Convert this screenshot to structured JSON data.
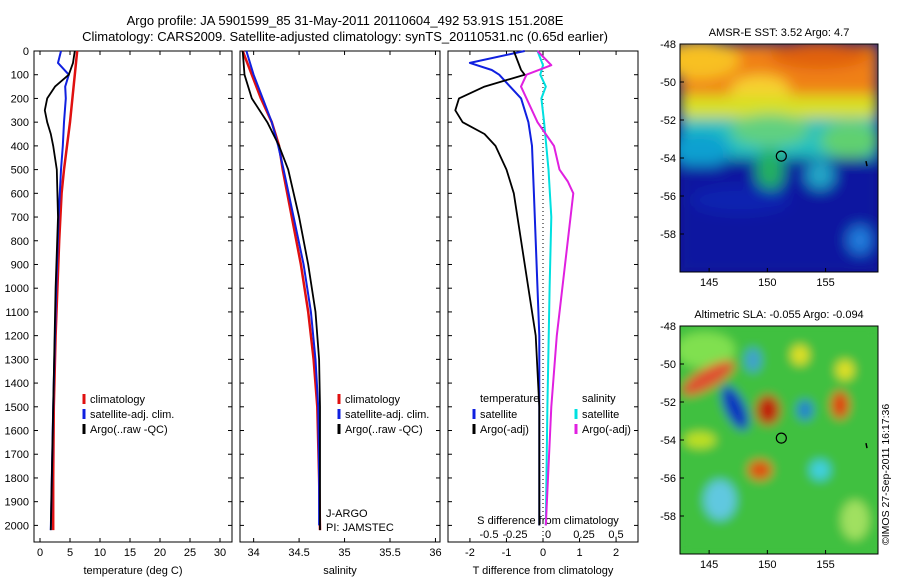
{
  "header": {
    "line1": "Argo profile: JA 5901599_85 31-May-2011 20110604_492 53.91S 151.208E",
    "line2": "Climatology: CARS2009. Satellite-adjusted climatology: synTS_20110531.nc (0.65d earlier)"
  },
  "credit": "©IMOS 27-Sep-2011 16:17:36",
  "colors": {
    "climatology": "#e01010",
    "satellite": "#1020e0",
    "argo": "#000000",
    "satellite_s": "#00e0e0",
    "argo_s": "#e020e0"
  },
  "chart_data": [
    {
      "type": "line",
      "name": "temperature-profile",
      "xlabel": "temperature (deg C)",
      "ylabel": "",
      "xlim": [
        -1,
        32
      ],
      "ylim": [
        2070,
        0
      ],
      "xticks": [
        0,
        5,
        10,
        15,
        20,
        25,
        30
      ],
      "yticks": [
        0,
        100,
        200,
        300,
        400,
        500,
        600,
        700,
        800,
        900,
        1000,
        1100,
        1200,
        1300,
        1400,
        1500,
        1600,
        1700,
        1800,
        1900,
        2000
      ],
      "legend": [
        "climatology",
        "satellite-adj. clim.",
        "Argo(..raw -QC)"
      ],
      "series": [
        {
          "name": "climatology",
          "depth": [
            0,
            100,
            200,
            300,
            400,
            500,
            600,
            800,
            1000,
            1200,
            1500,
            1800,
            2020
          ],
          "values": [
            6.2,
            5.8,
            5.4,
            5.0,
            4.5,
            4.0,
            3.6,
            3.2,
            2.9,
            2.6,
            2.3,
            2.2,
            2.2
          ]
        },
        {
          "name": "satellite-adj. clim.",
          "depth": [
            0,
            50,
            100,
            150,
            200,
            300,
            400,
            500,
            700,
            1000,
            1500,
            2020
          ],
          "values": [
            3.5,
            3.0,
            4.8,
            4.2,
            4.3,
            4.0,
            3.8,
            3.5,
            3.1,
            2.7,
            2.2,
            1.8
          ]
        },
        {
          "name": "Argo(..raw -QC)",
          "depth": [
            0,
            50,
            100,
            150,
            200,
            250,
            300,
            350,
            400,
            500,
            700,
            1000,
            1500,
            2020
          ],
          "values": [
            5.8,
            5.5,
            4.8,
            2.5,
            1.2,
            0.8,
            1.2,
            1.8,
            2.2,
            2.8,
            3.0,
            2.6,
            2.2,
            1.8
          ]
        }
      ]
    },
    {
      "type": "line",
      "name": "salinity-profile",
      "xlabel": "salinity",
      "ylabel": "",
      "xlim": [
        33.85,
        36.05
      ],
      "ylim": [
        2070,
        0
      ],
      "xticks": [
        34,
        34.5,
        35,
        35.5,
        36
      ],
      "legend": [
        "climatology",
        "satellite-adj. clim.",
        "Argo(..raw -QC)"
      ],
      "annotations": [
        "J-ARGO",
        "PI: JAMSTEC"
      ],
      "series": [
        {
          "name": "climatology",
          "depth": [
            0,
            100,
            200,
            300,
            400,
            500,
            700,
            900,
            1100,
            1300,
            1500,
            1800,
            2020
          ],
          "values": [
            33.88,
            33.98,
            34.08,
            34.2,
            34.28,
            34.32,
            34.42,
            34.52,
            34.6,
            34.66,
            34.7,
            34.72,
            34.73
          ]
        },
        {
          "name": "satellite-adj. clim.",
          "depth": [
            0,
            100,
            200,
            300,
            400,
            500,
            700,
            900,
            1100,
            1300,
            1500,
            1800,
            2000
          ],
          "values": [
            33.92,
            34.0,
            34.1,
            34.2,
            34.27,
            34.33,
            34.44,
            34.55,
            34.63,
            34.68,
            34.71,
            34.72,
            34.72
          ]
        },
        {
          "name": "Argo(..raw -QC)",
          "depth": [
            0,
            100,
            200,
            300,
            400,
            500,
            700,
            900,
            1100,
            1300,
            1500,
            1800,
            2020
          ],
          "values": [
            33.88,
            33.9,
            33.98,
            34.15,
            34.28,
            34.38,
            34.5,
            34.6,
            34.68,
            34.72,
            34.73,
            34.73,
            34.73
          ]
        }
      ]
    },
    {
      "type": "line",
      "name": "difference-profile",
      "xlabel": "T difference from climatology",
      "xlabel_top": "S difference from climatology",
      "xlim": [
        -2.6,
        2.6
      ],
      "ylim": [
        2070,
        0
      ],
      "xticks_T": [
        -2,
        -1,
        0,
        1,
        2
      ],
      "xticks_S": [
        "-0.5",
        "-0.25",
        "0",
        "0.25",
        "0.5"
      ],
      "legend_temperature": [
        "temperature",
        "satellite",
        "Argo(-adj)"
      ],
      "legend_salinity": [
        "salinity",
        "satellite",
        "Argo(-adj)"
      ],
      "series": [
        {
          "name": "temperature satellite",
          "depth": [
            0,
            50,
            80,
            100,
            150,
            200,
            300,
            400,
            600,
            800,
            1000,
            1200,
            1500,
            2000
          ],
          "values": [
            -0.5,
            -2.0,
            -1.4,
            -1.2,
            -0.9,
            -0.6,
            -0.4,
            -0.3,
            -0.25,
            -0.2,
            -0.15,
            -0.1,
            -0.1,
            -0.1
          ]
        },
        {
          "name": "temperature Argo(-adj)",
          "depth": [
            0,
            80,
            100,
            150,
            200,
            250,
            300,
            350,
            400,
            500,
            600,
            800,
            1000,
            1200,
            1500,
            2000
          ],
          "values": [
            -0.8,
            -0.6,
            -0.5,
            -1.6,
            -2.3,
            -2.4,
            -2.2,
            -1.6,
            -1.3,
            -1.0,
            -0.8,
            -0.6,
            -0.4,
            -0.2,
            -0.1,
            -0.1
          ]
        },
        {
          "name": "salinity satellite",
          "depth": [
            0,
            60,
            100,
            150,
            200,
            300,
            500,
            700,
            1000,
            1500,
            2000
          ],
          "values": [
            -0.1,
            0.0,
            -0.05,
            0.05,
            -0.03,
            0.02,
            0.1,
            0.15,
            0.12,
            0.08,
            0.05
          ]
        },
        {
          "name": "salinity Argo(-adj)",
          "depth": [
            0,
            60,
            100,
            150,
            200,
            300,
            400,
            500,
            550,
            600,
            800,
            1000,
            1200,
            1500,
            2000
          ],
          "values": [
            -0.1,
            0.15,
            -0.3,
            -0.4,
            -0.3,
            -0.1,
            0.2,
            0.3,
            0.45,
            0.55,
            0.45,
            0.35,
            0.25,
            0.15,
            0.05
          ]
        }
      ]
    },
    {
      "type": "heatmap",
      "name": "amsre-sst-map",
      "title": "AMSR-E SST: 3.52 Argo: 4.7",
      "xlim": [
        142.5,
        159.5
      ],
      "ylim": [
        -48,
        -60
      ],
      "xticks": [
        145,
        150,
        155
      ],
      "yticks": [
        -48,
        -50,
        -52,
        -54,
        -56,
        -58
      ],
      "marker": {
        "lon": 151.2,
        "lat": -53.9
      }
    },
    {
      "type": "heatmap",
      "name": "altimetric-sla-map",
      "title": "Altimetric SLA: -0.055 Argo: -0.094",
      "xlim": [
        142.5,
        159.5
      ],
      "ylim": [
        -48,
        -60
      ],
      "xticks": [
        145,
        150,
        155
      ],
      "yticks": [
        -48,
        -50,
        -52,
        -54,
        -56,
        -58
      ],
      "marker": {
        "lon": 151.2,
        "lat": -53.9
      }
    }
  ]
}
